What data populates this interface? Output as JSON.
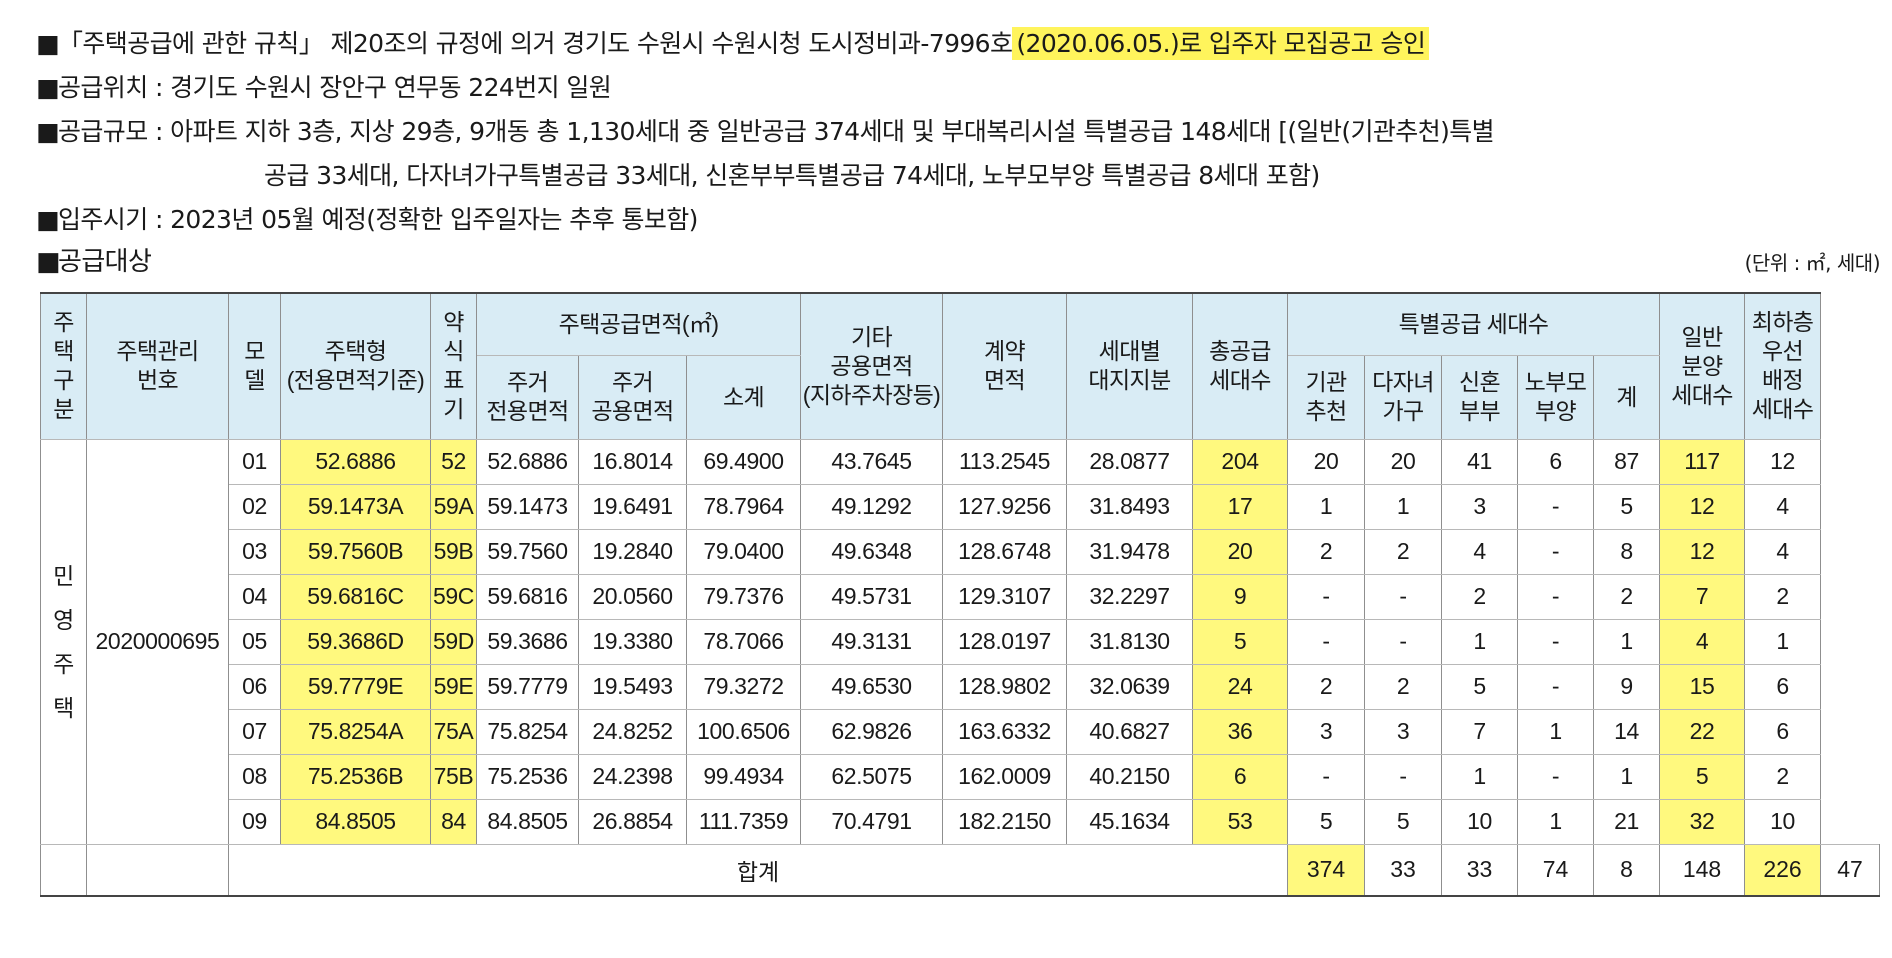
{
  "notice": {
    "marker": "■",
    "lines": [
      {
        "before": "「주택공급에 관한 규칙」 제20조의 규정에 의거 경기도 수원시 수원시청 도시정비과-7996호",
        "highlight": "(2020.06.05.)로 입주자 모집공고 승인"
      },
      {
        "text": "공급위치 : 경기도 수원시 장안구 연무동 224번지 일원"
      },
      {
        "text": "공급규모 : 아파트 지하 3층, 지상 29층, 9개동 총 1,130세대 중 일반공급 374세대 및 부대복리시설 특별공급 148세대 [(일반(기관추천)특별"
      },
      {
        "text": "공급 33세대, 다자녀가구특별공급 33세대, 신혼부부특별공급 74세대, 노부모부양 특별공급 8세대 포함)"
      },
      {
        "text": "입주시기 : 2023년 05월 예정(정확한 입주일자는 추후 통보함)"
      }
    ]
  },
  "section": {
    "title": "공급대상",
    "unit": "(단위 : ㎡, 세대)"
  },
  "table": {
    "header": {
      "house_type_group": "주\n택\n구\n분",
      "management_no": "주택관리\n번호",
      "model": "모\n델",
      "housing_type": "주택형\n(전용면적기준)",
      "abbrev": "약\n식\n표\n기",
      "supply_area": "주택공급면적(㎡)",
      "exclusive": "주거\n전용면적",
      "common": "주거\n공용면적",
      "subtotal": "소계",
      "other_common": "기타\n공용면적\n(지하주차장등)",
      "contract_area": "계약\n면적",
      "land_share": "세대별\n대지지분",
      "total_supply": "총공급\n세대수",
      "special_group": "특별공급 세대수",
      "institution": "기관\n추천",
      "multi_child": "다자녀\n가구",
      "newlywed": "신혼\n부부",
      "elderly": "노부모\n부양",
      "special_total": "계",
      "general": "일반\n분양\n세대수",
      "lowest_floor": "최하층\n우선\n배정\n세대수"
    },
    "group_label": "민\n영\n주\n택",
    "management_no": "2020000695",
    "rows": [
      {
        "model": "01",
        "type": "52.6886",
        "abbr": "52",
        "excl": "52.6886",
        "comm": "16.8014",
        "sub": "69.4900",
        "other": "43.7645",
        "contract": "113.2545",
        "land": "28.0877",
        "total": "204",
        "inst": "20",
        "multi": "20",
        "newly": "41",
        "elder": "6",
        "stotal": "87",
        "general": "117",
        "lowest": "12"
      },
      {
        "model": "02",
        "type": "59.1473A",
        "abbr": "59A",
        "excl": "59.1473",
        "comm": "19.6491",
        "sub": "78.7964",
        "other": "49.1292",
        "contract": "127.9256",
        "land": "31.8493",
        "total": "17",
        "inst": "1",
        "multi": "1",
        "newly": "3",
        "elder": "-",
        "stotal": "5",
        "general": "12",
        "lowest": "4"
      },
      {
        "model": "03",
        "type": "59.7560B",
        "abbr": "59B",
        "excl": "59.7560",
        "comm": "19.2840",
        "sub": "79.0400",
        "other": "49.6348",
        "contract": "128.6748",
        "land": "31.9478",
        "total": "20",
        "inst": "2",
        "multi": "2",
        "newly": "4",
        "elder": "-",
        "stotal": "8",
        "general": "12",
        "lowest": "4"
      },
      {
        "model": "04",
        "type": "59.6816C",
        "abbr": "59C",
        "excl": "59.6816",
        "comm": "20.0560",
        "sub": "79.7376",
        "other": "49.5731",
        "contract": "129.3107",
        "land": "32.2297",
        "total": "9",
        "inst": "-",
        "multi": "-",
        "newly": "2",
        "elder": "-",
        "stotal": "2",
        "general": "7",
        "lowest": "2"
      },
      {
        "model": "05",
        "type": "59.3686D",
        "abbr": "59D",
        "excl": "59.3686",
        "comm": "19.3380",
        "sub": "78.7066",
        "other": "49.3131",
        "contract": "128.0197",
        "land": "31.8130",
        "total": "5",
        "inst": "-",
        "multi": "-",
        "newly": "1",
        "elder": "-",
        "stotal": "1",
        "general": "4",
        "lowest": "1"
      },
      {
        "model": "06",
        "type": "59.7779E",
        "abbr": "59E",
        "excl": "59.7779",
        "comm": "19.5493",
        "sub": "79.3272",
        "other": "49.6530",
        "contract": "128.9802",
        "land": "32.0639",
        "total": "24",
        "inst": "2",
        "multi": "2",
        "newly": "5",
        "elder": "-",
        "stotal": "9",
        "general": "15",
        "lowest": "6"
      },
      {
        "model": "07",
        "type": "75.8254A",
        "abbr": "75A",
        "excl": "75.8254",
        "comm": "24.8252",
        "sub": "100.6506",
        "other": "62.9826",
        "contract": "163.6332",
        "land": "40.6827",
        "total": "36",
        "inst": "3",
        "multi": "3",
        "newly": "7",
        "elder": "1",
        "stotal": "14",
        "general": "22",
        "lowest": "6"
      },
      {
        "model": "08",
        "type": "75.2536B",
        "abbr": "75B",
        "excl": "75.2536",
        "comm": "24.2398",
        "sub": "99.4934",
        "other": "62.5075",
        "contract": "162.0009",
        "land": "40.2150",
        "total": "6",
        "inst": "-",
        "multi": "-",
        "newly": "1",
        "elder": "-",
        "stotal": "1",
        "general": "5",
        "lowest": "2"
      },
      {
        "model": "09",
        "type": "84.8505",
        "abbr": "84",
        "excl": "84.8505",
        "comm": "26.8854",
        "sub": "111.7359",
        "other": "70.4791",
        "contract": "182.2150",
        "land": "45.1634",
        "total": "53",
        "inst": "5",
        "multi": "5",
        "newly": "10",
        "elder": "1",
        "stotal": "21",
        "general": "32",
        "lowest": "10"
      }
    ],
    "total_row": {
      "label": "합계",
      "total": "374",
      "inst": "33",
      "multi": "33",
      "newly": "74",
      "elder": "8",
      "stotal": "148",
      "general": "226",
      "lowest": "47"
    }
  }
}
